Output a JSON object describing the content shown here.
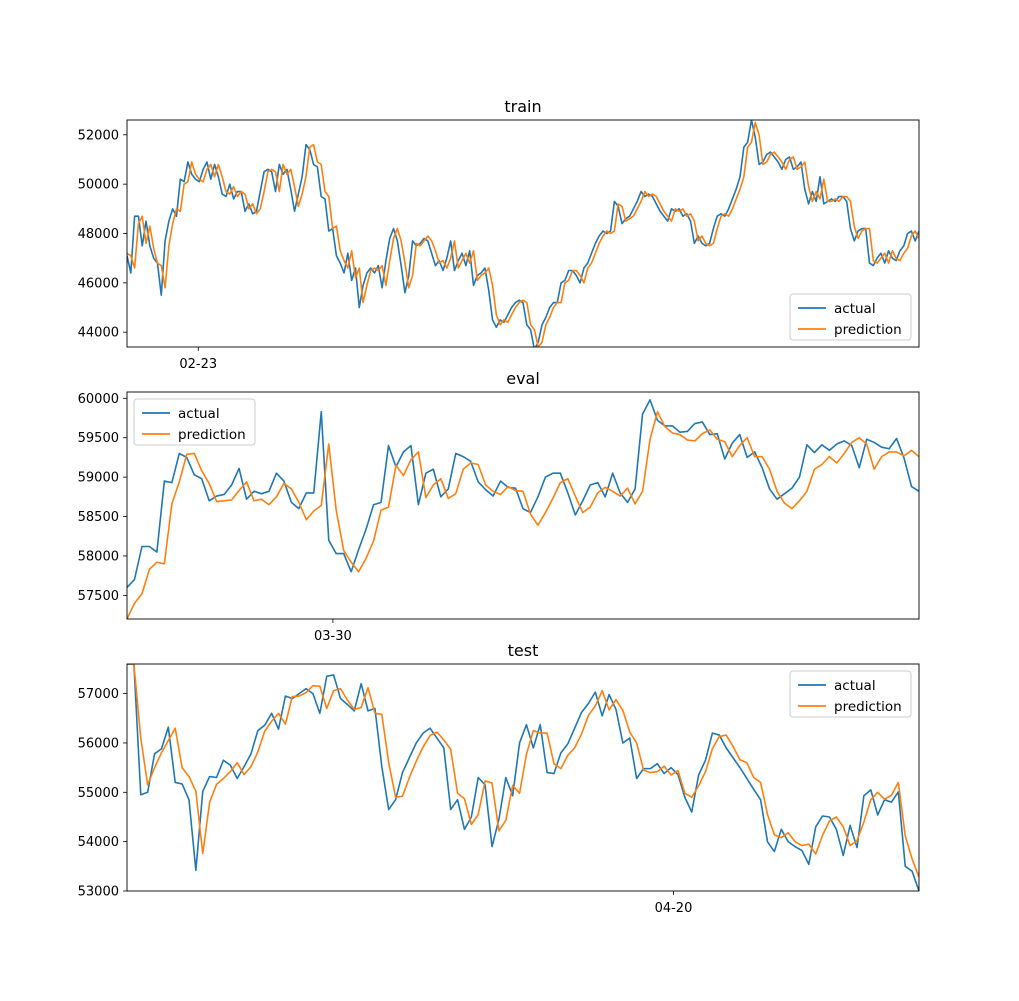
{
  "chart_data": [
    {
      "type": "line",
      "title": "train",
      "ylim": [
        43400,
        52600
      ],
      "yticks": [
        44000,
        46000,
        48000,
        50000,
        52000
      ],
      "xticks": [
        {
          "label": "02-23",
          "pos": 0.09
        }
      ],
      "legend": {
        "placement": "lower-right",
        "entries": [
          "actual",
          "prediction"
        ]
      },
      "series": [
        {
          "name": "actual",
          "color": "#1f77b4",
          "values": [
            47100,
            46400,
            48700,
            48700,
            47500,
            48500,
            47500,
            47000,
            46800,
            45500,
            47700,
            48500,
            49000,
            48700,
            50200,
            50100,
            50900,
            50400,
            50200,
            50100,
            50600,
            50900,
            50200,
            50800,
            50300,
            49600,
            49500,
            50000,
            49400,
            49700,
            49700,
            48900,
            49200,
            48800,
            48900,
            49700,
            50500,
            50600,
            50500,
            49700,
            50800,
            50400,
            50600,
            49800,
            48900,
            49600,
            50300,
            51600,
            51400,
            50800,
            50700,
            49500,
            49400,
            48100,
            48200,
            47100,
            46800,
            46400,
            47200,
            46100,
            46600,
            45000,
            45900,
            46400,
            46600,
            46400,
            46700,
            45800,
            46900,
            47800,
            48200,
            47700,
            46700,
            45600,
            46300,
            47700,
            47500,
            47600,
            47800,
            47700,
            47200,
            46700,
            46900,
            46500,
            47000,
            47700,
            46500,
            46900,
            47200,
            46700,
            47300,
            45900,
            46300,
            46400,
            46600,
            45700,
            44500,
            44200,
            44500,
            44400,
            44700,
            45000,
            45200,
            45300,
            45200,
            44300,
            44100,
            43300,
            43600,
            44300,
            44600,
            45000,
            45200,
            45200,
            46000,
            46100,
            46500,
            46500,
            46300,
            46000,
            46600,
            46800,
            47200,
            47600,
            47900,
            48100,
            48000,
            48100,
            49300,
            49100,
            48400,
            48600,
            48700,
            49000,
            49300,
            49700,
            49500,
            49600,
            49500,
            49200,
            48900,
            48700,
            48500,
            49000,
            48900,
            49000,
            48700,
            48800,
            48500,
            47600,
            47900,
            47600,
            47500,
            47600,
            48200,
            48700,
            48800,
            48700,
            49000,
            49400,
            49800,
            50300,
            51500,
            51700,
            52600,
            51900,
            50800,
            50900,
            51200,
            51300,
            51100,
            50900,
            50600,
            51000,
            51100,
            50600,
            50700,
            50900,
            49800,
            49200,
            49700,
            49300,
            50300,
            49200,
            49300,
            49400,
            49300,
            49500,
            49500,
            49300,
            48200,
            47700,
            48100,
            48200,
            48200,
            46800,
            46700,
            47000,
            47200,
            46800,
            47300,
            47000,
            46900,
            47300,
            47500,
            48000,
            48100,
            47700,
            48100
          ]
        },
        {
          "name": "prediction",
          "color": "#ff7f0e",
          "values": [
            47200,
            47100,
            46600,
            48400,
            48700,
            47600,
            48300,
            47400,
            46800,
            46700,
            45800,
            47500,
            48400,
            49000,
            48900,
            50000,
            50100,
            50900,
            50400,
            50200,
            50100,
            50600,
            50800,
            50300,
            50800,
            50300,
            49700,
            49600,
            49900,
            49500,
            49700,
            49600,
            49000,
            49200,
            48800,
            49000,
            49700,
            50500,
            50600,
            50500,
            49700,
            50800,
            50400,
            50600,
            49900,
            49100,
            49600,
            50300,
            51500,
            51600,
            50900,
            50800,
            49700,
            49500,
            48200,
            48300,
            47300,
            46900,
            46600,
            47300,
            46200,
            46600,
            45200,
            45900,
            46500,
            46600,
            46500,
            46700,
            45900,
            46900,
            47800,
            48200,
            47700,
            46800,
            45800,
            46300,
            47600,
            47500,
            47700,
            47900,
            47700,
            47300,
            46800,
            46900,
            46600,
            47000,
            47700,
            46600,
            46900,
            47200,
            46800,
            47300,
            46100,
            46300,
            46400,
            46600,
            45900,
            44700,
            44300,
            44500,
            44400,
            44700,
            45000,
            45200,
            45300,
            45200,
            44300,
            44100,
            43400,
            43600,
            44300,
            44600,
            45000,
            45200,
            45200,
            46000,
            46100,
            46500,
            46500,
            46300,
            46000,
            46600,
            46800,
            47200,
            47600,
            47900,
            48100,
            48000,
            48100,
            49200,
            49100,
            48500,
            48600,
            48700,
            49000,
            49300,
            49700,
            49500,
            49600,
            49500,
            49200,
            48900,
            48700,
            48500,
            49000,
            48900,
            49000,
            48700,
            48800,
            48500,
            47700,
            47900,
            47600,
            47500,
            47600,
            48200,
            48700,
            48800,
            48700,
            49000,
            49400,
            49800,
            50300,
            51500,
            51700,
            52500,
            52000,
            50800,
            50900,
            51200,
            51300,
            51100,
            50900,
            50600,
            51000,
            51100,
            50600,
            50700,
            50900,
            49900,
            49300,
            49700,
            49400,
            50200,
            49300,
            49300,
            49400,
            49300,
            49500,
            49500,
            49300,
            48300,
            47800,
            48100,
            48200,
            48200,
            46900,
            46800,
            47000,
            47200,
            46800,
            47300,
            47000,
            46900,
            47200,
            47400,
            47900,
            48100,
            47800,
            48200
          ]
        }
      ]
    },
    {
      "type": "line",
      "title": "eval",
      "ylim": [
        57200,
        60080
      ],
      "yticks": [
        57500,
        58000,
        58500,
        59000,
        59500,
        60000
      ],
      "xticks": [
        {
          "label": "03-30",
          "pos": 0.26
        }
      ],
      "legend": {
        "placement": "upper-left",
        "entries": [
          "actual",
          "prediction"
        ]
      },
      "series": [
        {
          "name": "actual",
          "color": "#1f77b4",
          "values": [
            57600,
            57700,
            58120,
            58120,
            58050,
            58950,
            58930,
            59300,
            59250,
            59030,
            58980,
            58700,
            58760,
            58780,
            58900,
            59110,
            58720,
            58820,
            58790,
            58820,
            59050,
            58950,
            58680,
            58600,
            58800,
            58800,
            59830,
            58200,
            58030,
            58030,
            57800,
            58080,
            58340,
            58650,
            58680,
            59400,
            59130,
            59320,
            59400,
            58650,
            59050,
            59100,
            58750,
            58850,
            59300,
            59260,
            59200,
            58940,
            58840,
            58760,
            58950,
            58870,
            58860,
            58600,
            58550,
            58750,
            59000,
            59050,
            59050,
            58800,
            58520,
            58700,
            58900,
            58930,
            58750,
            59050,
            58800,
            58680,
            58850,
            59800,
            59980,
            59720,
            59650,
            59650,
            59570,
            59580,
            59680,
            59700,
            59540,
            59550,
            59230,
            59430,
            59540,
            59250,
            59320,
            59120,
            58850,
            58720,
            58790,
            58860,
            59000,
            59410,
            59310,
            59410,
            59340,
            59420,
            59460,
            59400,
            59120,
            59480,
            59440,
            59380,
            59360,
            59490,
            59240,
            58880,
            58820
          ]
        },
        {
          "name": "prediction",
          "color": "#ff7f0e",
          "values": [
            57200,
            57400,
            57520,
            57830,
            57920,
            57900,
            58660,
            58940,
            59290,
            59300,
            59080,
            58920,
            58690,
            58700,
            58710,
            58830,
            58940,
            58700,
            58720,
            58650,
            58750,
            58920,
            58850,
            58680,
            58460,
            58570,
            58640,
            59420,
            58580,
            58070,
            57920,
            57800,
            57970,
            58190,
            58580,
            58620,
            59150,
            59020,
            59220,
            59320,
            58740,
            58900,
            58980,
            58730,
            58790,
            59100,
            59180,
            59160,
            58900,
            58820,
            58780,
            58880,
            58830,
            58820,
            58530,
            58390,
            58550,
            58730,
            58930,
            58980,
            58760,
            58550,
            58620,
            58800,
            58870,
            58820,
            58760,
            58860,
            58660,
            58820,
            59480,
            59830,
            59640,
            59560,
            59540,
            59470,
            59460,
            59550,
            59600,
            59480,
            59450,
            59260,
            59400,
            59500,
            59260,
            59260,
            59100,
            58820,
            58670,
            58600,
            58700,
            58820,
            59100,
            59160,
            59260,
            59180,
            59300,
            59440,
            59500,
            59420,
            59100,
            59260,
            59320,
            59320,
            59270,
            59340,
            59260,
            58960
          ]
        }
      ]
    },
    {
      "type": "line",
      "title": "test",
      "ylim": [
        53000,
        57600
      ],
      "yticks": [
        53000,
        54000,
        55000,
        56000,
        57000
      ],
      "xticks": [
        {
          "label": "04-20",
          "pos": 0.69
        }
      ],
      "legend": {
        "placement": "upper-right",
        "entries": [
          "actual",
          "prediction"
        ]
      },
      "series": [
        {
          "name": "actual",
          "color": "#1f77b4",
          "values": [
            57600,
            57600,
            54950,
            55000,
            55780,
            55880,
            56320,
            55200,
            55170,
            54850,
            53420,
            55020,
            55320,
            55300,
            55650,
            55550,
            55280,
            55520,
            55780,
            56250,
            56360,
            56600,
            56280,
            56950,
            56900,
            57000,
            57100,
            57000,
            56600,
            57350,
            57380,
            56900,
            56780,
            56650,
            57200,
            56650,
            56700,
            55520,
            54650,
            54850,
            55400,
            55700,
            56000,
            56200,
            56300,
            56100,
            55900,
            54650,
            54850,
            54250,
            54500,
            55300,
            55150,
            53900,
            54450,
            55300,
            54930,
            56000,
            56370,
            55900,
            56370,
            55400,
            55380,
            55800,
            55980,
            56300,
            56620,
            56800,
            57030,
            56550,
            56980,
            56680,
            56000,
            56100,
            55280,
            55480,
            55480,
            55580,
            55380,
            55500,
            55360,
            54900,
            54600,
            55350,
            55650,
            56200,
            56160,
            55900,
            55700,
            55500,
            55280,
            55060,
            54850,
            54000,
            53800,
            54250,
            54000,
            53900,
            53820,
            53540,
            54300,
            54520,
            54500,
            54250,
            53720,
            54330,
            53880,
            54930,
            55050,
            54540,
            54850,
            54800,
            55010,
            53500,
            53400,
            53000
          ]
        },
        {
          "name": "prediction",
          "color": "#ff7f0e",
          "values": [
            57600,
            57600,
            56100,
            55150,
            55500,
            55800,
            56050,
            56300,
            55500,
            55320,
            55020,
            53760,
            54800,
            55160,
            55280,
            55420,
            55600,
            55360,
            55520,
            55820,
            56240,
            56440,
            56600,
            56380,
            56940,
            56950,
            57020,
            57160,
            57150,
            56700,
            57060,
            57100,
            56870,
            56680,
            56720,
            57120,
            56600,
            56580,
            55600,
            54900,
            54920,
            55300,
            55630,
            55920,
            56150,
            56220,
            56060,
            55870,
            54980,
            54870,
            54350,
            54550,
            55230,
            55190,
            54220,
            54430,
            55140,
            54980,
            55770,
            56250,
            56200,
            56200,
            55580,
            55480,
            55750,
            55900,
            56180,
            56560,
            56750,
            57060,
            56670,
            56880,
            56660,
            56220,
            56000,
            55450,
            55400,
            55420,
            55530,
            55350,
            55440,
            54980,
            54900,
            55130,
            55420,
            55880,
            56130,
            56160,
            55930,
            55660,
            55600,
            55300,
            55200,
            54550,
            54140,
            54080,
            54180,
            54000,
            53920,
            53950,
            53750,
            54130,
            54420,
            54500,
            54300,
            53920,
            54020,
            54400,
            54850,
            55000,
            54860,
            54940,
            55200,
            54120,
            53650,
            53280
          ]
        }
      ]
    }
  ]
}
